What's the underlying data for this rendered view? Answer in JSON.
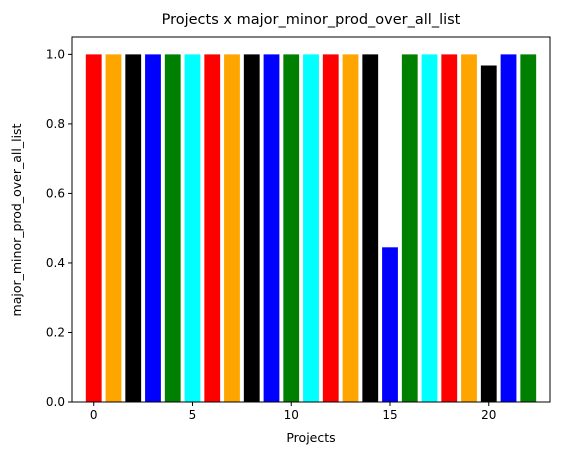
{
  "chart_data": {
    "type": "bar",
    "title": "Projects x major_minor_prod_over_all_list",
    "xlabel": "Projects",
    "ylabel": "major_minor_prod_over_all_list",
    "x": [
      0,
      1,
      2,
      3,
      4,
      5,
      6,
      7,
      8,
      9,
      10,
      11,
      12,
      13,
      14,
      15,
      16,
      17,
      18,
      19,
      20,
      21,
      22
    ],
    "values": [
      1.0,
      1.0,
      1.0,
      1.0,
      1.0,
      1.0,
      1.0,
      1.0,
      1.0,
      1.0,
      1.0,
      1.0,
      1.0,
      1.0,
      1.0,
      0.445,
      1.0,
      1.0,
      1.0,
      1.0,
      0.968,
      1.0,
      1.0
    ],
    "colors": [
      "#ff0000",
      "#ffa500",
      "#000000",
      "#0000ff",
      "#008000",
      "#00ffff",
      "#ff0000",
      "#ffa500",
      "#000000",
      "#0000ff",
      "#008000",
      "#00ffff",
      "#ff0000",
      "#ffa500",
      "#000000",
      "#0000ff",
      "#008000",
      "#00ffff",
      "#ff0000",
      "#ffa500",
      "#000000",
      "#0000ff",
      "#008000"
    ],
    "xlim": [
      -1.1,
      23.1
    ],
    "ylim": [
      0,
      1.05
    ],
    "xticks": [
      0,
      5,
      10,
      15,
      20
    ],
    "yticks": [
      0.0,
      0.2,
      0.4,
      0.6,
      0.8,
      1.0
    ],
    "ytick_labels": [
      "0.0",
      "0.2",
      "0.4",
      "0.6",
      "0.8",
      "1.0"
    ],
    "grid": false,
    "legend": "none"
  }
}
